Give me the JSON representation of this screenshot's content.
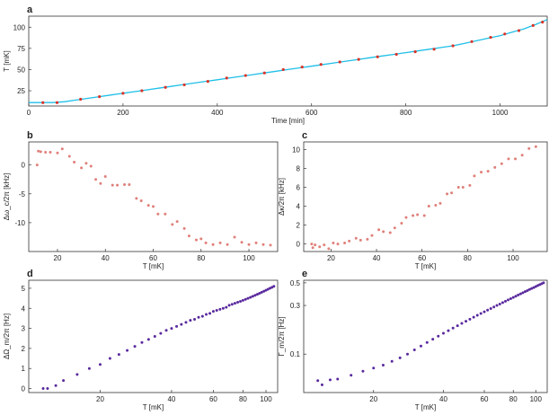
{
  "chart_data": [
    {
      "id": "a",
      "panel_label": "a",
      "type": "line",
      "xlabel": "Time [min]",
      "ylabel": "T [mK]",
      "xlim": [
        0,
        1100
      ],
      "ylim": [
        7,
        113
      ],
      "xticks": [
        0,
        200,
        400,
        600,
        800,
        1000
      ],
      "yticks": [
        25,
        50,
        75,
        100
      ],
      "line_color": "#1fbfe8",
      "marker_color": "#d9352b",
      "x": [
        0,
        25,
        50,
        75,
        100,
        125,
        150,
        175,
        200,
        225,
        250,
        275,
        300,
        325,
        350,
        375,
        400,
        425,
        450,
        475,
        500,
        525,
        550,
        575,
        600,
        625,
        650,
        675,
        700,
        725,
        750,
        775,
        800,
        825,
        850,
        875,
        900,
        925,
        950,
        975,
        1000,
        1025,
        1050,
        1075,
        1100
      ],
      "values": [
        11,
        11,
        11,
        12,
        14,
        16,
        18,
        20,
        22,
        24,
        26,
        28,
        30,
        32,
        34,
        36,
        38,
        40,
        42,
        44,
        46,
        48,
        50,
        52,
        54,
        56,
        58,
        60,
        62,
        64,
        66,
        68,
        70,
        72,
        74,
        76,
        78,
        81,
        84,
        87,
        90,
        94,
        98,
        103,
        109
      ],
      "markers_x": [
        30,
        60,
        110,
        150,
        200,
        240,
        290,
        330,
        380,
        420,
        460,
        500,
        540,
        580,
        620,
        660,
        700,
        740,
        780,
        820,
        860,
        900,
        940,
        980,
        1010,
        1040,
        1070,
        1090
      ],
      "markers_y": [
        11,
        11,
        15,
        18,
        22,
        25,
        29,
        32,
        36,
        40,
        43,
        46,
        50,
        53,
        56,
        59,
        62,
        65,
        68,
        71,
        74,
        78,
        83,
        88,
        92,
        96,
        102,
        106
      ]
    },
    {
      "id": "b",
      "panel_label": "b",
      "type": "scatter",
      "xlabel": "T [mK]",
      "ylabel": "Δω_c/2π  [kHz]",
      "xlim": [
        8,
        112
      ],
      "ylim": [
        -15,
        4
      ],
      "xticks": [
        20,
        40,
        60,
        80,
        100
      ],
      "yticks": [
        0,
        -5,
        -10
      ],
      "marker_color": "#e0807a",
      "x": [
        11.5,
        12,
        13,
        15,
        17,
        20,
        22,
        25,
        27,
        30,
        32,
        34,
        36,
        38,
        40,
        43,
        45,
        48,
        50,
        53,
        55,
        58,
        60,
        62,
        65,
        68,
        70,
        73,
        75,
        78,
        80,
        82,
        85,
        88,
        91,
        94,
        97,
        100,
        103,
        106,
        109
      ],
      "y": [
        0,
        2.4,
        2.3,
        2.2,
        2.2,
        2.1,
        2.8,
        1.5,
        0.5,
        -0.5,
        0.3,
        -0.2,
        -2.5,
        -3.2,
        -2,
        -3.5,
        -3.5,
        -3.4,
        -3.4,
        -5.8,
        -6.2,
        -7.0,
        -7.2,
        -8.5,
        -8.5,
        -10.3,
        -9.8,
        -11,
        -12.3,
        -13,
        -12.8,
        -13.5,
        -13.8,
        -13.5,
        -13.8,
        -12.5,
        -13.4,
        -13.8,
        -13.5,
        -13.8,
        -13.9
      ]
    },
    {
      "id": "c",
      "panel_label": "c",
      "type": "scatter",
      "xlabel": "T [mK]",
      "ylabel": "Δκ/2π  [kHz]",
      "xlim": [
        8,
        115
      ],
      "ylim": [
        -0.8,
        10.8
      ],
      "xticks": [
        20,
        40,
        60,
        80,
        100
      ],
      "yticks": [
        0,
        2,
        4,
        6,
        8,
        10
      ],
      "marker_color": "#e0807a",
      "x": [
        11.5,
        12,
        13,
        15,
        17,
        19,
        21,
        23,
        26,
        28,
        31,
        33,
        36,
        38,
        41,
        43,
        46,
        48,
        51,
        53,
        56,
        58,
        61,
        63,
        66,
        68,
        71,
        73,
        76,
        78,
        81,
        83,
        86,
        89,
        92,
        95,
        98,
        101,
        104,
        107,
        110
      ],
      "y": [
        0,
        -0.4,
        -0.1,
        -0.3,
        -0.1,
        -0.5,
        0.1,
        0,
        0.1,
        0.3,
        0.6,
        0.4,
        0.5,
        0.9,
        1.5,
        1.3,
        1.2,
        1.7,
        2.2,
        2.8,
        3.0,
        3.1,
        3.0,
        4.0,
        4.1,
        4.3,
        5.3,
        5.4,
        6.0,
        6.0,
        6.2,
        7.2,
        7.6,
        7.7,
        8.1,
        8.5,
        9.0,
        9.0,
        9.4,
        10.1,
        10.3
      ]
    },
    {
      "id": "d",
      "panel_label": "d",
      "type": "scatter",
      "xscale": "log",
      "xlabel": "T [mK]",
      "ylabel": "ΔΩ_m/2π  [Hz]",
      "xlim": [
        10,
        112
      ],
      "ylim": [
        -0.2,
        5.4
      ],
      "xticks": [
        20,
        40,
        60,
        80,
        100
      ],
      "yticks": [
        0,
        1,
        2,
        3,
        4,
        5
      ],
      "marker_color": "#5a2a9e",
      "x": [
        11.5,
        12,
        13,
        14,
        16,
        18,
        20,
        22,
        24,
        26,
        28,
        30,
        32,
        34,
        36,
        38,
        40,
        42,
        44,
        46,
        48,
        50,
        52,
        54,
        56,
        58,
        60,
        62,
        64,
        66,
        68,
        70,
        72,
        74,
        76,
        78,
        80,
        82,
        84,
        86,
        88,
        90,
        92,
        94,
        96,
        98,
        100,
        102,
        104,
        106,
        108
      ],
      "y": [
        0,
        0,
        0.15,
        0.4,
        0.7,
        1.0,
        1.2,
        1.5,
        1.7,
        1.9,
        2.1,
        2.3,
        2.45,
        2.6,
        2.75,
        2.9,
        3.0,
        3.1,
        3.2,
        3.3,
        3.4,
        3.45,
        3.55,
        3.6,
        3.7,
        3.75,
        3.85,
        3.9,
        3.95,
        4.0,
        4.05,
        4.15,
        4.2,
        4.25,
        4.3,
        4.35,
        4.4,
        4.45,
        4.5,
        4.55,
        4.6,
        4.65,
        4.7,
        4.75,
        4.8,
        4.85,
        4.9,
        4.95,
        5.0,
        5.05,
        5.1
      ]
    },
    {
      "id": "e",
      "panel_label": "e",
      "type": "scatter",
      "xscale": "log",
      "yscale": "log",
      "xlabel": "T [mK]",
      "ylabel": "Γ_m/2π  [Hz]",
      "xlim": [
        10,
        112
      ],
      "ylim": [
        0.042,
        0.53
      ],
      "xticks": [
        20,
        40,
        60,
        80,
        100
      ],
      "yticks": [
        0.1,
        0.3,
        0.5
      ],
      "marker_color": "#5a2a9e",
      "x": [
        11.5,
        12,
        13,
        14,
        16,
        18,
        20,
        22,
        24,
        26,
        28,
        30,
        32,
        34,
        36,
        38,
        40,
        42,
        44,
        46,
        48,
        50,
        52,
        54,
        56,
        58,
        60,
        62,
        64,
        66,
        68,
        70,
        72,
        74,
        76,
        78,
        80,
        82,
        84,
        86,
        88,
        90,
        92,
        94,
        96,
        98,
        100,
        102,
        104,
        106,
        108
      ],
      "y": [
        0.055,
        0.05,
        0.056,
        0.057,
        0.062,
        0.068,
        0.073,
        0.078,
        0.085,
        0.092,
        0.1,
        0.11,
        0.12,
        0.13,
        0.14,
        0.15,
        0.16,
        0.17,
        0.18,
        0.19,
        0.2,
        0.21,
        0.22,
        0.23,
        0.24,
        0.25,
        0.26,
        0.27,
        0.28,
        0.29,
        0.3,
        0.31,
        0.32,
        0.33,
        0.34,
        0.35,
        0.36,
        0.37,
        0.38,
        0.39,
        0.4,
        0.41,
        0.42,
        0.43,
        0.44,
        0.45,
        0.46,
        0.47,
        0.48,
        0.49,
        0.5
      ]
    }
  ]
}
